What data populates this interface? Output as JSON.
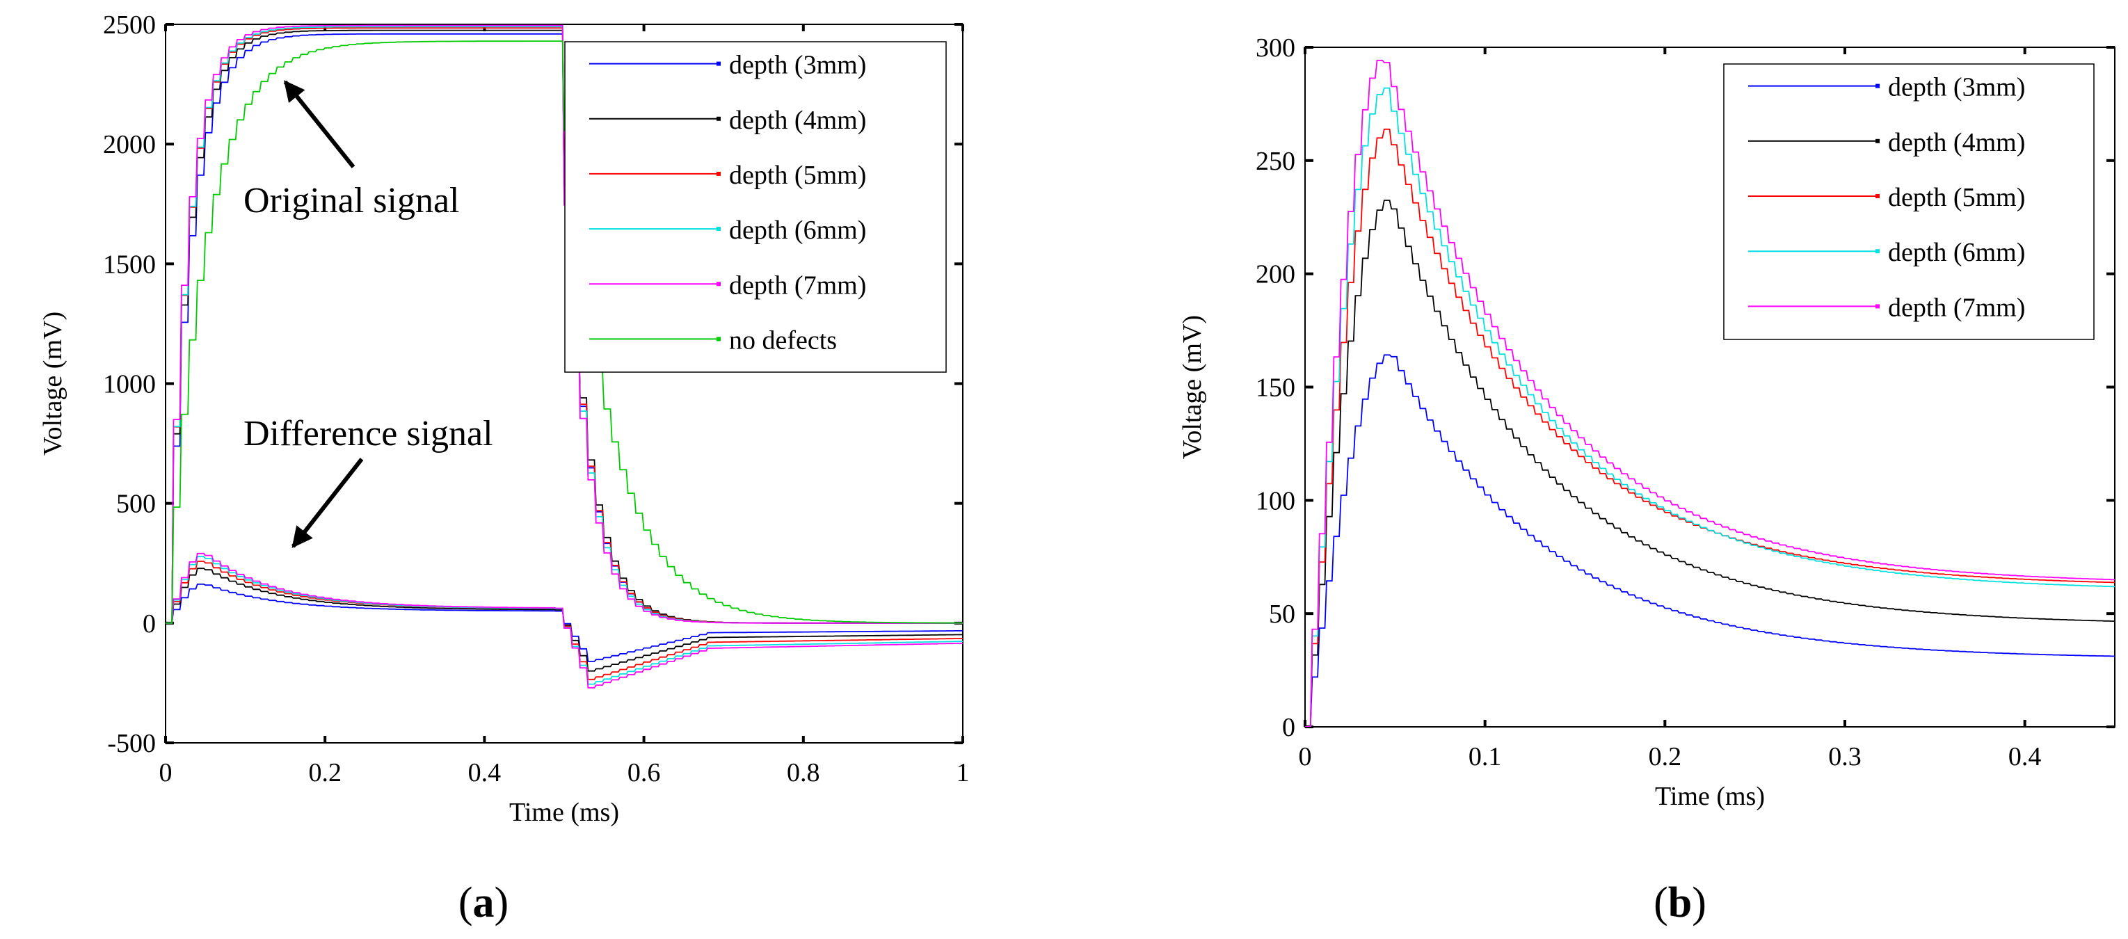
{
  "chart_data": [
    {
      "type": "line",
      "panel_label": "a",
      "xlabel": "Time (ms)",
      "ylabel": "Voltage (mV)",
      "xlim": [
        0,
        1
      ],
      "ylim": [
        -500,
        2500
      ],
      "xticks": [
        0,
        0.2,
        0.4,
        0.6,
        0.8,
        1
      ],
      "yticks": [
        -500,
        0,
        500,
        1000,
        1500,
        2000,
        2500
      ],
      "legend_position": "top-right",
      "annotations": [
        {
          "text": "Original signal",
          "arrow_to": [
            0.15,
            2260
          ]
        },
        {
          "text": "Difference signal",
          "arrow_to": [
            0.16,
            320
          ]
        }
      ],
      "series": [
        {
          "name": "depth (3mm)",
          "color": "#0000ff",
          "plateau": 2460,
          "rise_tau": 0.028,
          "fall_tau": 0.03,
          "diff": {
            "peak": 165,
            "tail": 50,
            "dip": -160,
            "end": -40
          }
        },
        {
          "name": "depth (4mm)",
          "color": "#000000",
          "plateau": 2475,
          "rise_tau": 0.026,
          "fall_tau": 0.031,
          "diff": {
            "peak": 232,
            "tail": 55,
            "dip": -200,
            "end": -60
          }
        },
        {
          "name": "depth (5mm)",
          "color": "#ff0000",
          "plateau": 2485,
          "rise_tau": 0.025,
          "fall_tau": 0.03,
          "diff": {
            "peak": 262,
            "tail": 60,
            "dip": -235,
            "end": -80
          }
        },
        {
          "name": "depth (6mm)",
          "color": "#00e0e0",
          "plateau": 2490,
          "rise_tau": 0.025,
          "fall_tau": 0.029,
          "diff": {
            "peak": 282,
            "tail": 60,
            "dip": -255,
            "end": -95
          }
        },
        {
          "name": "depth (7mm)",
          "color": "#ff00ff",
          "plateau": 2495,
          "rise_tau": 0.024,
          "fall_tau": 0.028,
          "diff": {
            "peak": 295,
            "tail": 62,
            "dip": -270,
            "end": -105
          }
        },
        {
          "name": "no defects",
          "color": "#00cc00",
          "plateau": 2430,
          "rise_tau": 0.045,
          "fall_tau": 0.06,
          "diff": null
        }
      ]
    },
    {
      "type": "line",
      "panel_label": "b",
      "xlabel": "Time (ms)",
      "ylabel": "Voltage (mV)",
      "xlim": [
        0,
        0.45
      ],
      "ylim": [
        0,
        300
      ],
      "xticks": [
        0,
        0.1,
        0.2,
        0.3,
        0.4
      ],
      "yticks": [
        0,
        50,
        100,
        150,
        200,
        250,
        300
      ],
      "legend_position": "top-right",
      "series": [
        {
          "name": "depth (3mm)",
          "color": "#0000ff",
          "peak": 165,
          "peak_t": 0.047,
          "end": 30
        },
        {
          "name": "depth (4mm)",
          "color": "#000000",
          "peak": 233,
          "peak_t": 0.046,
          "end": 45
        },
        {
          "name": "depth (5mm)",
          "color": "#ff0000",
          "peak": 264,
          "peak_t": 0.045,
          "end": 62
        },
        {
          "name": "depth (6mm)",
          "color": "#00e0e0",
          "peak": 282,
          "peak_t": 0.044,
          "end": 60
        },
        {
          "name": "depth (7mm)",
          "color": "#ff00ff",
          "peak": 296,
          "peak_t": 0.043,
          "end": 63
        }
      ]
    }
  ]
}
